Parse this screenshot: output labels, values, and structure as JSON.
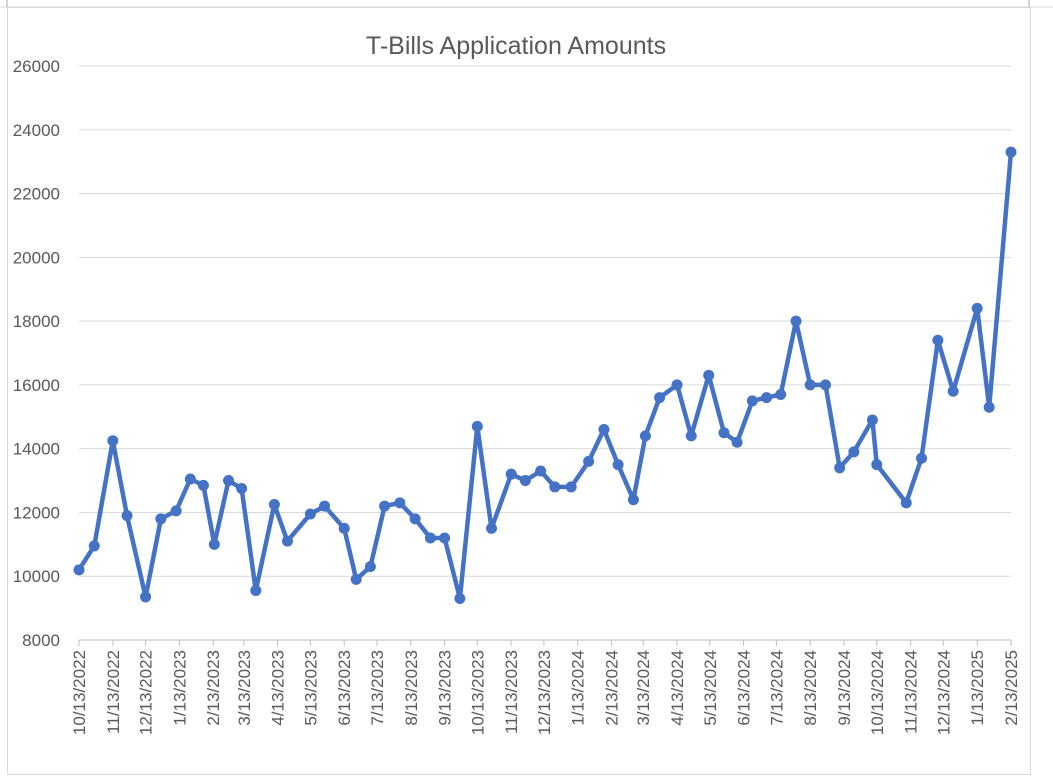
{
  "chart_data": {
    "type": "line",
    "title": "T-Bills Application Amounts",
    "xlabel": "",
    "ylabel": "",
    "ylim": [
      8000,
      26000
    ],
    "y_ticks": [
      8000,
      10000,
      12000,
      14000,
      16000,
      18000,
      20000,
      22000,
      24000,
      26000
    ],
    "y_tick_labels": [
      "8000",
      "10000",
      "12000",
      "14000",
      "16000",
      "18000",
      "20000",
      "22000",
      "24000",
      "26000"
    ],
    "x_tick_labels": [
      "10/13/2022",
      "11/13/2022",
      "12/13/2022",
      "1/13/2023",
      "2/13/2023",
      "3/13/2023",
      "4/13/2023",
      "5/13/2023",
      "6/13/2023",
      "7/13/2023",
      "8/13/2023",
      "9/13/2023",
      "10/13/2023",
      "11/13/2023",
      "12/13/2023",
      "1/13/2024",
      "2/13/2024",
      "3/13/2024",
      "4/13/2024",
      "5/13/2024",
      "6/13/2024",
      "7/13/2024",
      "8/13/2024",
      "9/13/2024",
      "10/13/2024",
      "11/13/2024",
      "12/13/2024",
      "1/13/2025",
      "2/13/2025"
    ],
    "grid": true,
    "legend": "none",
    "series": [
      {
        "color": "#4472c4",
        "x": [
          "2022-10-13",
          "2022-10-27",
          "2022-11-13",
          "2022-11-26",
          "2022-12-13",
          "2022-12-27",
          "2023-01-10",
          "2023-01-23",
          "2023-02-04",
          "2023-02-14",
          "2023-02-27",
          "2023-03-11",
          "2023-03-24",
          "2023-04-10",
          "2023-04-22",
          "2023-05-13",
          "2023-05-26",
          "2023-06-13",
          "2023-06-24",
          "2023-07-07",
          "2023-07-20",
          "2023-08-03",
          "2023-08-17",
          "2023-08-31",
          "2023-09-13",
          "2023-09-27",
          "2023-10-13",
          "2023-10-26",
          "2023-11-13",
          "2023-11-26",
          "2023-12-10",
          "2023-12-23",
          "2024-01-07",
          "2024-01-23",
          "2024-02-06",
          "2024-02-19",
          "2024-03-04",
          "2024-03-15",
          "2024-03-28",
          "2024-04-13",
          "2024-04-26",
          "2024-05-12",
          "2024-05-26",
          "2024-06-07",
          "2024-06-21",
          "2024-07-04",
          "2024-07-17",
          "2024-07-31",
          "2024-08-13",
          "2024-08-27",
          "2024-09-09",
          "2024-09-22",
          "2024-10-09",
          "2024-10-13",
          "2024-11-09",
          "2024-11-23",
          "2024-12-08",
          "2024-12-22",
          "2025-01-13",
          "2025-01-24",
          "2025-02-13"
        ],
        "values": [
          10200,
          10950,
          14250,
          11900,
          9350,
          11800,
          12050,
          13050,
          12850,
          11000,
          13000,
          12750,
          9550,
          12250,
          11100,
          11950,
          12200,
          11500,
          9900,
          10300,
          12200,
          12300,
          11800,
          11200,
          11200,
          9300,
          14700,
          11500,
          13200,
          13000,
          13300,
          12800,
          12800,
          13600,
          14600,
          13500,
          12400,
          14400,
          15600,
          16000,
          14400,
          16300,
          14500,
          14200,
          15500,
          15600,
          15700,
          18000,
          16000,
          16000,
          13400,
          13900,
          14900,
          13500,
          12300,
          13700,
          17400,
          15800,
          18400,
          15300,
          23300
        ]
      }
    ]
  }
}
